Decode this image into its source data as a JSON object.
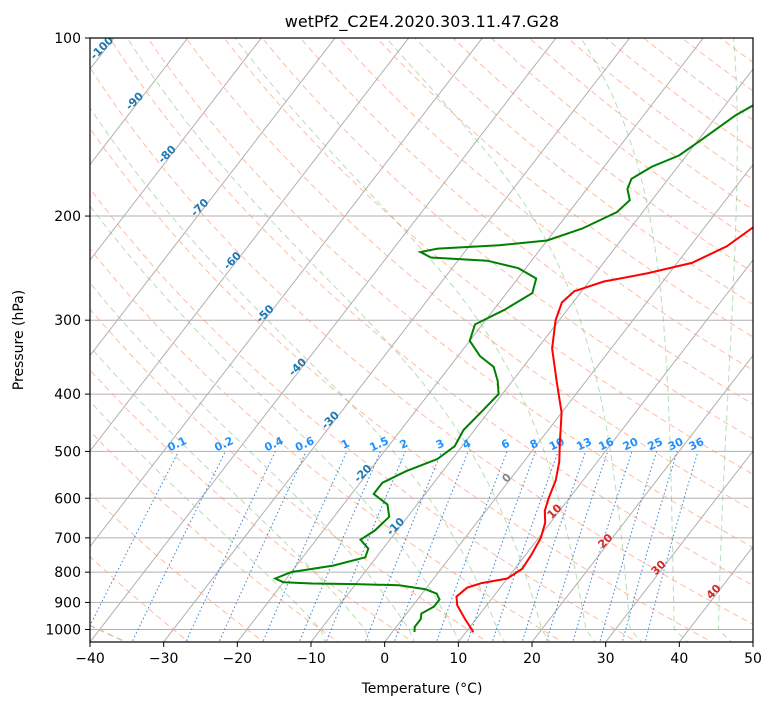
{
  "chart_data": {
    "type": "line",
    "title": "wetPf2_C2E4.2020.303.11.47.G28",
    "xlabel": "Temperature (°C)",
    "ylabel": "Pressure (hPa)",
    "xlim": [
      -40,
      50
    ],
    "ylim": [
      1050,
      100
    ],
    "y_scale": "log",
    "grid": true,
    "x_ticks": [
      -40,
      -30,
      -20,
      -10,
      0,
      10,
      20,
      30,
      40,
      50
    ],
    "y_ticks": [
      1000,
      900,
      800,
      700,
      600,
      500,
      400,
      300,
      200,
      100
    ],
    "series": [
      {
        "color": "#ff0000",
        "points": [
          [
            11,
            1010
          ],
          [
            8.5,
            960
          ],
          [
            6,
            910
          ],
          [
            5,
            880
          ],
          [
            5.5,
            850
          ],
          [
            7,
            835
          ],
          [
            10,
            820
          ],
          [
            11,
            790
          ],
          [
            10.8,
            750
          ],
          [
            10.3,
            700
          ],
          [
            9.3,
            660
          ],
          [
            8,
            630
          ],
          [
            7.2,
            600
          ],
          [
            6.3,
            560
          ],
          [
            4.8,
            520
          ],
          [
            3,
            485
          ],
          [
            0,
            430
          ],
          [
            -4,
            380
          ],
          [
            -8,
            335
          ],
          [
            -10.5,
            300
          ],
          [
            -11.5,
            280
          ],
          [
            -11,
            268
          ],
          [
            -8,
            258
          ],
          [
            -3,
            250
          ],
          [
            2,
            240
          ],
          [
            5,
            225
          ],
          [
            7,
            205
          ],
          [
            9,
            190
          ],
          [
            12,
            175
          ],
          [
            16,
            165
          ],
          [
            18,
            152
          ],
          [
            19,
            138
          ],
          [
            20,
            128
          ],
          [
            22,
            118
          ],
          [
            24.5,
            108
          ],
          [
            26.5,
            100
          ]
        ]
      },
      {
        "color": "#008000",
        "points": [
          [
            3,
            1010
          ],
          [
            2.5,
            990
          ],
          [
            2.5,
            960
          ],
          [
            2,
            940
          ],
          [
            3,
            915
          ],
          [
            3,
            890
          ],
          [
            2,
            870
          ],
          [
            0,
            855
          ],
          [
            -4,
            842
          ],
          [
            -10,
            838
          ],
          [
            -16,
            836
          ],
          [
            -20,
            832
          ],
          [
            -21.5,
            820
          ],
          [
            -20,
            800
          ],
          [
            -15,
            780
          ],
          [
            -11.5,
            755
          ],
          [
            -12,
            730
          ],
          [
            -14,
            705
          ],
          [
            -13,
            680
          ],
          [
            -12.5,
            645
          ],
          [
            -14,
            615
          ],
          [
            -17,
            590
          ],
          [
            -17,
            565
          ],
          [
            -15,
            540
          ],
          [
            -12,
            515
          ],
          [
            -11,
            490
          ],
          [
            -11.5,
            460
          ],
          [
            -11,
            430
          ],
          [
            -10.5,
            400
          ],
          [
            -12,
            380
          ],
          [
            -14,
            360
          ],
          [
            -17,
            345
          ],
          [
            -20,
            325
          ],
          [
            -21,
            305
          ],
          [
            -18.5,
            288
          ],
          [
            -16.5,
            270
          ],
          [
            -17.5,
            255
          ],
          [
            -21,
            245
          ],
          [
            -26,
            238
          ],
          [
            -34,
            235
          ],
          [
            -36,
            230
          ],
          [
            -34,
            227
          ],
          [
            -26,
            224
          ],
          [
            -20,
            220
          ],
          [
            -16.5,
            210
          ],
          [
            -13.5,
            197
          ],
          [
            -13,
            188
          ],
          [
            -14.5,
            180
          ],
          [
            -15,
            173
          ],
          [
            -13.5,
            165
          ],
          [
            -11,
            158
          ],
          [
            -9.5,
            148
          ],
          [
            -7.5,
            135
          ],
          [
            -4,
            122
          ],
          [
            -1,
            112
          ],
          [
            1.5,
            100
          ]
        ]
      }
    ],
    "dry_adiabat_labels": [
      "-100",
      "-90",
      "-80",
      "-70",
      "-60",
      "-50",
      "-40",
      "-30",
      "-20",
      "-10"
    ],
    "moist_adiabat_labels": [
      "0",
      "10",
      "20",
      "30",
      "40"
    ],
    "mixing_ratio_labels": [
      "0.1",
      "0.2",
      "0.4",
      "0.6",
      "1",
      "1.5",
      "2",
      "3",
      "4",
      "6",
      "8",
      "10",
      "13",
      "16",
      "20",
      "25",
      "30",
      "36"
    ]
  }
}
